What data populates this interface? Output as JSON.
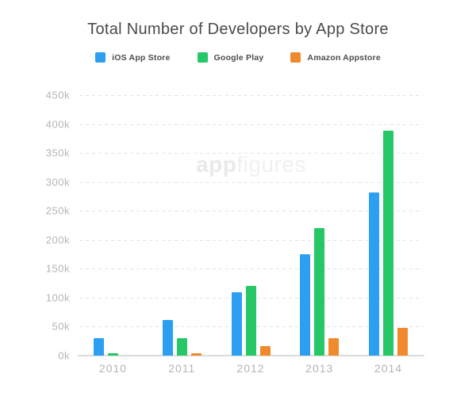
{
  "title": "Total Number of Developers by App Store",
  "watermark": {
    "part1": "app",
    "part2": "figures"
  },
  "colors": {
    "ios": "#2d9ff0",
    "google_play": "#26c766",
    "amazon": "#f08a2d",
    "title_text": "#4a4a4a",
    "axis_text": "#b5b5b5",
    "gridline": "#e3e3e3",
    "baseline": "#dcdcdc",
    "background": "#ffffff"
  },
  "chart_data": {
    "type": "bar",
    "title": "Total Number of Developers by App Store",
    "categories": [
      "2010",
      "2011",
      "2012",
      "2013",
      "2014"
    ],
    "series": [
      {
        "name": "iOS App Store",
        "color": "#2d9ff0",
        "values": [
          30000,
          62000,
          110000,
          175000,
          282000
        ]
      },
      {
        "name": "Google Play",
        "color": "#26c766",
        "values": [
          4000,
          30000,
          120000,
          220000,
          388000
        ]
      },
      {
        "name": "Amazon Appstore",
        "color": "#f08a2d",
        "values": [
          0,
          4000,
          17000,
          30000,
          48000
        ]
      }
    ],
    "xlabel": "",
    "ylabel": "",
    "ylim": [
      0,
      450000
    ],
    "yticks": [
      "450k",
      "400k",
      "350k",
      "300k",
      "250k",
      "200k",
      "150k",
      "100k",
      "50k",
      "0k"
    ],
    "grid": "horizontal-dashed",
    "legend_position": "top",
    "watermark_text": "appfigures"
  }
}
